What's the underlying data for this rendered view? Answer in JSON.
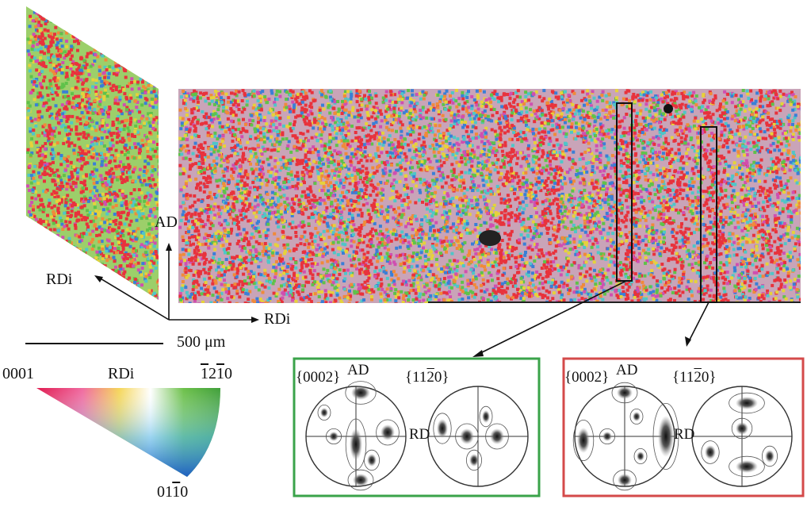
{
  "axes": {
    "ad": "AD",
    "rdi_left": "RDi",
    "rdi_bottom": "RDi"
  },
  "scale_bar": {
    "label_num": "500",
    "label_unit": "μm"
  },
  "color_key": {
    "corner_0001": "0001",
    "top_mid": "RDi",
    "corner_12_a": "1",
    "corner_12_b": "2",
    "corner_12_c": "1",
    "corner_12_d": "0",
    "corner_01_a": "01",
    "corner_01_b": "1",
    "corner_01_c": "0"
  },
  "pole_figures": [
    {
      "frame_color": "#3aa34a",
      "left_open": "{0002}",
      "right_open_a": "{11",
      "right_open_b": "2",
      "right_open_c": "0}",
      "ad": "AD",
      "rd": "RD"
    },
    {
      "frame_color": "#d44a4a",
      "left_open": "{0002}",
      "right_open_a": "{11",
      "right_open_b": "2",
      "right_open_c": "0}",
      "ad": "AD",
      "rd": "RD"
    }
  ],
  "colors": {
    "map_red": "#e8323c",
    "map_green": "#5fc24a",
    "map_blue": "#3a7fd6",
    "map_yellow": "#e6d23a"
  }
}
